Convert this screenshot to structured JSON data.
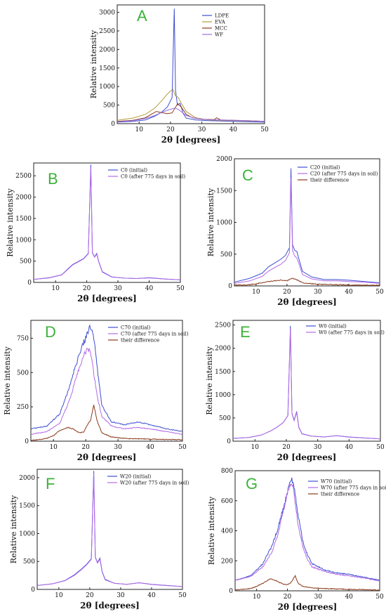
{
  "chart_data": [
    {
      "type": "line",
      "panel_label": "A",
      "xlabel": "2θ [degrees]",
      "ylabel": "Relative intensity",
      "xlim": [
        3,
        50
      ],
      "ylim": [
        0,
        3200
      ],
      "xticks": [
        10,
        20,
        30,
        40,
        50
      ],
      "yticks": [
        0,
        500,
        1000,
        1500,
        2000,
        2500,
        3000
      ],
      "series": [
        {
          "name": "LDPE",
          "color": "#3f4fd1",
          "kind": "sharp",
          "x": [
            3,
            8,
            12,
            15,
            17,
            19,
            20.5,
            21.2,
            21.6,
            22.2,
            23,
            23.5,
            24,
            25,
            28,
            32,
            36,
            40,
            45,
            50
          ],
          "y": [
            40,
            60,
            100,
            200,
            300,
            450,
            700,
            3100,
            900,
            500,
            550,
            430,
            280,
            150,
            100,
            80,
            70,
            60,
            50,
            40
          ]
        },
        {
          "name": "EVA",
          "color": "#b49a3a",
          "kind": "smooth",
          "x": [
            3,
            8,
            12,
            15,
            17,
            19,
            20,
            20.8,
            21.5,
            22.5,
            23.5,
            25,
            28,
            32,
            36,
            40,
            45,
            50
          ],
          "y": [
            90,
            150,
            250,
            420,
            600,
            800,
            880,
            920,
            760,
            700,
            540,
            330,
            160,
            100,
            90,
            80,
            70,
            60
          ]
        },
        {
          "name": "MCC",
          "color": "#8a3a1a",
          "kind": "smooth",
          "x": [
            3,
            8,
            12,
            14,
            15.5,
            17,
            19,
            20.5,
            22.3,
            23.5,
            25,
            27,
            30,
            34,
            34.7,
            36,
            40,
            45,
            50
          ],
          "y": [
            60,
            90,
            160,
            260,
            330,
            300,
            270,
            290,
            540,
            440,
            250,
            160,
            120,
            110,
            160,
            100,
            90,
            80,
            60
          ]
        },
        {
          "name": "WF",
          "color": "#9b6fe0",
          "kind": "smooth",
          "x": [
            3,
            8,
            12,
            15,
            17,
            19,
            20.5,
            21.5,
            22.5,
            23.5,
            25,
            28,
            32,
            36,
            40,
            45,
            50
          ],
          "y": [
            50,
            80,
            140,
            220,
            300,
            360,
            400,
            420,
            380,
            320,
            220,
            140,
            110,
            100,
            90,
            80,
            60
          ]
        }
      ]
    },
    {
      "type": "line",
      "panel_label": "B",
      "xlabel": "2θ [degrees]",
      "ylabel": "Relative intensity",
      "xlim": [
        3,
        50
      ],
      "ylim": [
        0,
        2800
      ],
      "xticks": [
        10,
        20,
        30,
        40,
        50
      ],
      "yticks": [
        0,
        500,
        1000,
        1500,
        2000,
        2500
      ],
      "series": [
        {
          "name": "C0 (initial)",
          "color": "#3f4fd1",
          "kind": "sharp",
          "x": [
            3,
            8,
            12,
            14,
            15.5,
            17,
            19,
            20.5,
            21.3,
            21.8,
            22.5,
            23.2,
            23.8,
            25,
            28,
            32,
            36,
            40,
            45,
            50
          ],
          "y": [
            70,
            110,
            180,
            320,
            420,
            480,
            560,
            680,
            2760,
            700,
            600,
            680,
            500,
            250,
            130,
            100,
            90,
            110,
            80,
            60
          ]
        },
        {
          "name": "C0 (after 775 days in soil)",
          "color": "#b36be6",
          "kind": "sharp",
          "x": [
            3,
            8,
            12,
            14,
            15.5,
            17,
            19,
            20.5,
            21.3,
            21.8,
            22.5,
            23.2,
            23.8,
            25,
            28,
            32,
            36,
            40,
            45,
            50
          ],
          "y": [
            70,
            105,
            175,
            310,
            410,
            470,
            550,
            670,
            2700,
            690,
            590,
            660,
            490,
            240,
            125,
            100,
            90,
            105,
            78,
            60
          ]
        }
      ]
    },
    {
      "type": "line",
      "panel_label": "C",
      "xlabel": "2θ [degrees]",
      "ylabel": "Relative intensity",
      "xlim": [
        3,
        50
      ],
      "ylim": [
        0,
        2000
      ],
      "xticks": [
        10,
        20,
        30,
        40,
        50
      ],
      "yticks": [
        0,
        500,
        1000,
        1500,
        2000
      ],
      "series": [
        {
          "name": "C20 (initial)",
          "color": "#3f4fd1",
          "kind": "sharp",
          "x": [
            3,
            8,
            12,
            14,
            16,
            18,
            19.5,
            20.8,
            21.3,
            21.8,
            22.5,
            23.2,
            24,
            25,
            28,
            32,
            36,
            40,
            45,
            50
          ],
          "y": [
            60,
            120,
            200,
            300,
            360,
            420,
            480,
            600,
            1850,
            650,
            560,
            540,
            400,
            230,
            140,
            100,
            100,
            90,
            70,
            50
          ]
        },
        {
          "name": "C20 (after 775 days in soil)",
          "color": "#b36be6",
          "kind": "sharp",
          "x": [
            3,
            8,
            12,
            14,
            16,
            18,
            19.5,
            20.8,
            21.3,
            21.8,
            22.5,
            23.2,
            24,
            25,
            28,
            32,
            36,
            40,
            45,
            50
          ],
          "y": [
            40,
            80,
            150,
            230,
            290,
            340,
            400,
            520,
            1700,
            560,
            470,
            440,
            330,
            180,
            110,
            80,
            80,
            70,
            60,
            40
          ]
        },
        {
          "name": "their difference",
          "color": "#8a3a1a",
          "kind": "noisy",
          "x": [
            3,
            8,
            12,
            14,
            16,
            18,
            20,
            21.3,
            22.5,
            23.5,
            25,
            30,
            40,
            50
          ],
          "y": [
            10,
            20,
            50,
            70,
            80,
            90,
            80,
            120,
            110,
            90,
            50,
            25,
            15,
            10
          ]
        }
      ]
    },
    {
      "type": "line",
      "panel_label": "D",
      "xlabel": "2θ [degrees]",
      "ylabel": "Relative intensity",
      "xlim": [
        3,
        50
      ],
      "ylim": [
        0,
        880
      ],
      "xticks": [
        10,
        20,
        30,
        40,
        50
      ],
      "yticks": [
        0,
        250,
        500,
        750
      ],
      "series": [
        {
          "name": "C70 (initial)",
          "color": "#3f4fd1",
          "kind": "noisy",
          "x": [
            3,
            8,
            12,
            15,
            17,
            19,
            20.5,
            21.5,
            22.5,
            23.5,
            25,
            28,
            32,
            36,
            40,
            45,
            50
          ],
          "y": [
            90,
            110,
            200,
            400,
            560,
            700,
            780,
            840,
            760,
            550,
            260,
            140,
            120,
            140,
            120,
            90,
            70
          ]
        },
        {
          "name": "C70 (after 775 days in soil)",
          "color": "#b36be6",
          "kind": "noisy",
          "x": [
            3,
            8,
            12,
            15,
            17,
            19,
            20.5,
            21.5,
            22.5,
            23.5,
            25,
            28,
            32,
            36,
            40,
            45,
            50
          ],
          "y": [
            50,
            70,
            130,
            300,
            460,
            600,
            680,
            650,
            500,
            330,
            180,
            110,
            90,
            100,
            90,
            70,
            50
          ]
        },
        {
          "name": "their difference",
          "color": "#8a3a1a",
          "kind": "noisy",
          "x": [
            3,
            8,
            10,
            12,
            14.5,
            16,
            18,
            19.5,
            20.5,
            21.5,
            22.5,
            23.5,
            25,
            28,
            32,
            40,
            50
          ],
          "y": [
            5,
            20,
            40,
            80,
            100,
            90,
            60,
            70,
            120,
            150,
            260,
            150,
            60,
            30,
            20,
            15,
            10
          ]
        }
      ]
    },
    {
      "type": "line",
      "panel_label": "E",
      "xlabel": "2θ [degrees]",
      "ylabel": "Relative intensity",
      "xlim": [
        3,
        50
      ],
      "ylim": [
        0,
        2600
      ],
      "xticks": [
        10,
        20,
        30,
        40,
        50
      ],
      "yticks": [
        0,
        500,
        1000,
        1500,
        2000,
        2500
      ],
      "series": [
        {
          "name": "W0 (initial)",
          "color": "#3f4fd1",
          "kind": "sharp",
          "x": [
            3,
            8,
            12,
            15,
            17,
            19,
            20.5,
            21.3,
            21.8,
            22.5,
            23.3,
            24,
            25,
            28,
            32,
            36,
            40,
            45,
            50
          ],
          "y": [
            60,
            80,
            130,
            220,
            300,
            400,
            550,
            2480,
            600,
            450,
            640,
            300,
            160,
            110,
            90,
            120,
            90,
            70,
            50
          ]
        },
        {
          "name": "W0 (after 775 days in soil)",
          "color": "#b36be6",
          "kind": "sharp",
          "x": [
            3,
            8,
            12,
            15,
            17,
            19,
            20.5,
            21.3,
            21.8,
            22.5,
            23.3,
            24,
            25,
            28,
            32,
            36,
            40,
            45,
            50
          ],
          "y": [
            60,
            80,
            130,
            220,
            300,
            400,
            550,
            2420,
            590,
            440,
            620,
            290,
            155,
            108,
            90,
            118,
            88,
            68,
            50
          ]
        }
      ]
    },
    {
      "type": "line",
      "panel_label": "F",
      "xlabel": "2θ [degrees]",
      "ylabel": "Relative intensity",
      "xlim": [
        3,
        50
      ],
      "ylim": [
        0,
        2150
      ],
      "xticks": [
        10,
        20,
        30,
        40,
        50
      ],
      "yticks": [
        0,
        500,
        1000,
        1500,
        2000
      ],
      "series": [
        {
          "name": "W20 (initial)",
          "color": "#3f4fd1",
          "kind": "sharp",
          "x": [
            3,
            8,
            12,
            15,
            17,
            19,
            20.5,
            21.3,
            21.8,
            22.5,
            23.3,
            24,
            25,
            28,
            32,
            36,
            40,
            45,
            50
          ],
          "y": [
            70,
            100,
            160,
            260,
            350,
            450,
            550,
            2120,
            580,
            480,
            560,
            320,
            180,
            110,
            90,
            120,
            90,
            70,
            50
          ]
        },
        {
          "name": "W20 (after 775 days in soil)",
          "color": "#b36be6",
          "kind": "sharp",
          "x": [
            3,
            8,
            12,
            15,
            17,
            19,
            20.5,
            21.3,
            21.8,
            22.5,
            23.3,
            24,
            25,
            28,
            32,
            36,
            40,
            45,
            50
          ],
          "y": [
            70,
            100,
            155,
            250,
            340,
            440,
            540,
            2080,
            570,
            470,
            540,
            310,
            170,
            108,
            90,
            118,
            88,
            68,
            50
          ]
        }
      ]
    },
    {
      "type": "line",
      "panel_label": "G",
      "xlabel": "2θ [degrees]",
      "ylabel": "Relative intensity",
      "xlim": [
        3,
        50
      ],
      "ylim": [
        0,
        800
      ],
      "xticks": [
        10,
        20,
        30,
        40,
        50
      ],
      "yticks": [
        0,
        200,
        400,
        600,
        800
      ],
      "series": [
        {
          "name": "W70 (initial)",
          "color": "#3f4fd1",
          "kind": "noisy",
          "x": [
            3,
            8,
            12,
            15,
            17,
            19,
            20.5,
            21.5,
            22.5,
            23.5,
            25,
            26.5,
            28,
            32,
            36,
            40,
            45,
            50
          ],
          "y": [
            70,
            100,
            180,
            300,
            420,
            580,
            700,
            750,
            650,
            500,
            330,
            240,
            180,
            140,
            120,
            110,
            90,
            70
          ]
        },
        {
          "name": "W70 (after 775 days in soil)",
          "color": "#b36be6",
          "kind": "noisy",
          "x": [
            3,
            8,
            12,
            15,
            17,
            19,
            20.5,
            21.5,
            22.5,
            23.5,
            25,
            26.5,
            28,
            32,
            36,
            40,
            45,
            50
          ],
          "y": [
            70,
            95,
            160,
            260,
            380,
            560,
            690,
            730,
            600,
            440,
            290,
            210,
            160,
            130,
            110,
            100,
            85,
            65
          ]
        },
        {
          "name": "their difference",
          "color": "#8a3a1a",
          "kind": "noisy",
          "x": [
            3,
            8,
            10,
            12,
            14.5,
            16,
            18,
            19.5,
            21,
            22.5,
            23.5,
            25,
            28,
            32,
            40,
            50
          ],
          "y": [
            5,
            15,
            30,
            50,
            80,
            70,
            50,
            40,
            50,
            100,
            50,
            30,
            20,
            15,
            10,
            5
          ]
        }
      ]
    }
  ]
}
